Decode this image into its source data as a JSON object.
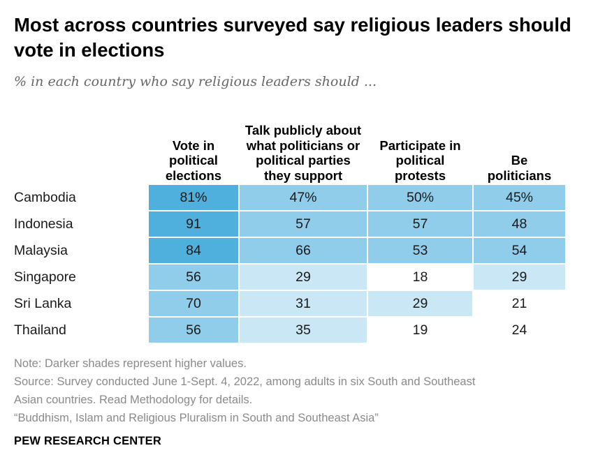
{
  "title": "Most across countries surveyed say religious leaders should vote in elections",
  "subtitle": "% in each country who say religious leaders should ...",
  "chart_data": {
    "type": "table",
    "columns": [
      "Vote in political elections",
      "Talk publicly about what politicians or political parties they support",
      "Participate in political protests",
      "Be politicians"
    ],
    "rows": [
      {
        "country": "Cambodia",
        "values": [
          81,
          47,
          50,
          45
        ],
        "labels": [
          "81%",
          "47%",
          "50%",
          "45%"
        ]
      },
      {
        "country": "Indonesia",
        "values": [
          91,
          57,
          57,
          48
        ],
        "labels": [
          "91",
          "57",
          "57",
          "48"
        ]
      },
      {
        "country": "Malaysia",
        "values": [
          84,
          66,
          53,
          54
        ],
        "labels": [
          "84",
          "66",
          "53",
          "54"
        ]
      },
      {
        "country": "Singapore",
        "values": [
          56,
          29,
          18,
          29
        ],
        "labels": [
          "56",
          "29",
          "18",
          "29"
        ]
      },
      {
        "country": "Sri Lanka",
        "values": [
          70,
          31,
          29,
          21
        ],
        "labels": [
          "70",
          "31",
          "29",
          "21"
        ]
      },
      {
        "country": "Thailand",
        "values": [
          56,
          35,
          19,
          24
        ],
        "labels": [
          "56",
          "35",
          "19",
          "24"
        ]
      }
    ],
    "shading": "Darker shades represent higher values",
    "colors": {
      "darkest": "#4fb0de",
      "dark": "#8fcdea",
      "light": "#c9e7f5",
      "none": "#ffffff"
    }
  },
  "notes": {
    "note": "Note: Darker shades represent higher values.",
    "source_line1": "Source: Survey conducted June 1-Sept. 4, 2022, among adults in six South and Southeast",
    "source_line2": "Asian countries. Read Methodology for details.",
    "report": "“Buddhism, Islam and Religious Pluralism in South and Southeast Asia”"
  },
  "brand": "PEW RESEARCH CENTER"
}
